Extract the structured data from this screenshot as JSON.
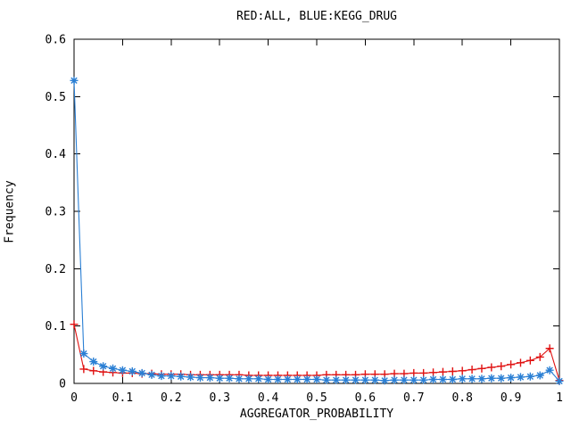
{
  "figure": {
    "background": "#ffffff",
    "border_color": "#000000"
  },
  "chart_data": {
    "type": "line",
    "title": "RED:ALL, BLUE:KEGG_DRUG",
    "xlabel": "AGGREGATOR_PROBABILITY",
    "ylabel": "Frequency",
    "xlim": [
      0,
      1
    ],
    "ylim": [
      0,
      0.6
    ],
    "grid": false,
    "legend_position": "none (encoded in title)",
    "x_ticks": {
      "values": [
        0,
        0.1,
        0.2,
        0.3,
        0.4,
        0.5,
        0.6,
        0.7,
        0.8,
        0.9,
        1
      ],
      "labels": [
        "0",
        "0.1",
        "0.2",
        "0.3",
        "0.4",
        "0.5",
        "0.6",
        "0.7",
        "0.8",
        "0.9",
        "1"
      ]
    },
    "y_ticks": {
      "values": [
        0,
        0.1,
        0.2,
        0.3,
        0.4,
        0.5,
        0.6
      ],
      "labels": [
        "0",
        "0.1",
        "0.2",
        "0.3",
        "0.4",
        "0.5",
        "0.6"
      ]
    },
    "x": [
      0,
      0.02,
      0.04,
      0.06,
      0.08,
      0.1,
      0.12,
      0.14,
      0.16,
      0.18,
      0.2,
      0.22,
      0.24,
      0.26,
      0.28,
      0.3,
      0.32,
      0.34,
      0.36,
      0.38,
      0.4,
      0.42,
      0.44,
      0.46,
      0.48,
      0.5,
      0.52,
      0.54,
      0.56,
      0.58,
      0.6,
      0.62,
      0.64,
      0.66,
      0.68,
      0.7,
      0.72,
      0.74,
      0.76,
      0.78,
      0.8,
      0.82,
      0.84,
      0.86,
      0.88,
      0.9,
      0.92,
      0.94,
      0.96,
      0.98,
      1.0
    ],
    "series": [
      {
        "name": "ALL",
        "color": "#e01212",
        "marker": "plus",
        "values": [
          0.103,
          0.025,
          0.022,
          0.02,
          0.019,
          0.018,
          0.018,
          0.017,
          0.017,
          0.016,
          0.016,
          0.016,
          0.015,
          0.015,
          0.015,
          0.015,
          0.015,
          0.015,
          0.014,
          0.014,
          0.014,
          0.014,
          0.014,
          0.014,
          0.014,
          0.014,
          0.015,
          0.015,
          0.015,
          0.015,
          0.016,
          0.016,
          0.016,
          0.017,
          0.017,
          0.018,
          0.018,
          0.019,
          0.02,
          0.021,
          0.022,
          0.024,
          0.026,
          0.028,
          0.03,
          0.033,
          0.036,
          0.04,
          0.046,
          0.061,
          0.005
        ]
      },
      {
        "name": "KEGG_DRUG",
        "color": "#2a7fd4",
        "marker": "asterisk",
        "values": [
          0.528,
          0.052,
          0.038,
          0.03,
          0.026,
          0.023,
          0.021,
          0.018,
          0.015,
          0.013,
          0.013,
          0.012,
          0.011,
          0.01,
          0.01,
          0.009,
          0.009,
          0.008,
          0.008,
          0.008,
          0.007,
          0.007,
          0.007,
          0.007,
          0.007,
          0.007,
          0.006,
          0.006,
          0.006,
          0.006,
          0.006,
          0.006,
          0.005,
          0.006,
          0.006,
          0.006,
          0.006,
          0.007,
          0.007,
          0.007,
          0.008,
          0.008,
          0.008,
          0.009,
          0.009,
          0.01,
          0.011,
          0.012,
          0.014,
          0.023,
          0.004
        ]
      }
    ]
  }
}
